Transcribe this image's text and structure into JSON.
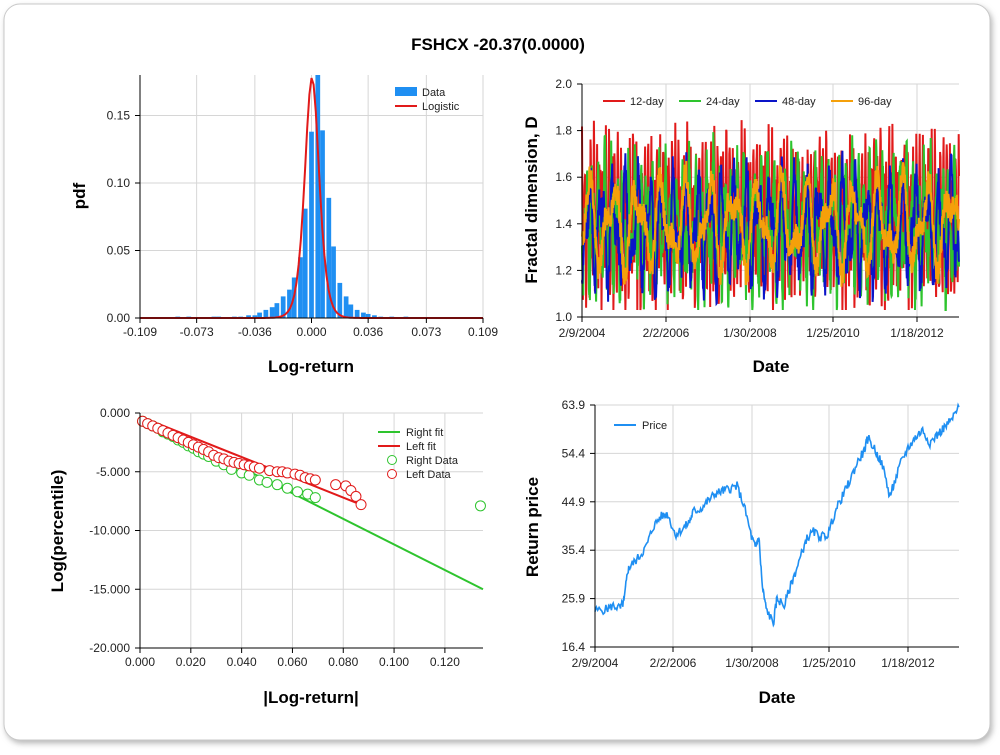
{
  "title": "FSHCX -20.37(0.0000)",
  "colors": {
    "data_blue": "#1f8ff2",
    "red": "#e11a1a",
    "green": "#2ec42e",
    "blue": "#0a14c8",
    "orange": "#f5a00a"
  },
  "chart_data": [
    {
      "id": "histogram",
      "type": "bar",
      "xlabel": "Log-return",
      "ylabel": "pdf",
      "xlim": [
        -0.109,
        0.109
      ],
      "ylim": [
        0,
        0.18
      ],
      "xticks": [
        "-0.109",
        "-0.073",
        "-0.036",
        "0.000",
        "0.036",
        "0.073",
        "0.109"
      ],
      "yticks": [
        "0.00",
        "0.05",
        "0.10",
        "0.15"
      ],
      "legend": [
        "Data",
        "Logistic"
      ],
      "legend_position": "top-right",
      "bin_width": 0.00364,
      "bins": [
        [
          -0.085,
          0.001
        ],
        [
          -0.078,
          0.001
        ],
        [
          -0.062,
          0.001
        ],
        [
          -0.059,
          0.001
        ],
        [
          -0.049,
          0.001
        ],
        [
          -0.045,
          0.001
        ],
        [
          -0.04,
          0.002
        ],
        [
          -0.036,
          0.002
        ],
        [
          -0.033,
          0.004
        ],
        [
          -0.029,
          0.006
        ],
        [
          -0.025,
          0.008
        ],
        [
          -0.022,
          0.011
        ],
        [
          -0.018,
          0.016
        ],
        [
          -0.014,
          0.021
        ],
        [
          -0.011,
          0.03
        ],
        [
          -0.007,
          0.045
        ],
        [
          -0.004,
          0.081
        ],
        [
          0.0,
          0.138
        ],
        [
          0.004,
          0.183
        ],
        [
          0.007,
          0.139
        ],
        [
          0.011,
          0.089
        ],
        [
          0.014,
          0.053
        ],
        [
          0.018,
          0.026
        ],
        [
          0.022,
          0.016
        ],
        [
          0.025,
          0.01
        ],
        [
          0.029,
          0.006
        ],
        [
          0.033,
          0.004
        ],
        [
          0.036,
          0.003
        ],
        [
          0.04,
          0.002
        ],
        [
          0.044,
          0.001
        ],
        [
          0.051,
          0.001
        ],
        [
          0.06,
          0.001
        ]
      ],
      "fit": {
        "name": "Logistic",
        "mu": 0.0003,
        "s": 0.00305
      }
    },
    {
      "id": "fractal",
      "type": "line",
      "xlabel": "Date",
      "ylabel": "Fractal dimension, D",
      "xticks": [
        "2/9/2004",
        "2/2/2006",
        "1/30/2008",
        "1/25/2010",
        "1/18/2012"
      ],
      "yticks": [
        "1.0",
        "1.2",
        "1.4",
        "1.6",
        "1.8",
        "2.0"
      ],
      "ylim": [
        1.0,
        2.0
      ],
      "legend_position": "top",
      "series": [
        {
          "name": "12-day",
          "color": "#e11a1a",
          "period": 12,
          "amp": 0.22,
          "base": 1.42,
          "seed": 3
        },
        {
          "name": "24-day",
          "color": "#2ec42e",
          "period": 24,
          "amp": 0.2,
          "base": 1.4,
          "seed": 7
        },
        {
          "name": "48-day",
          "color": "#0a14c8",
          "period": 48,
          "amp": 0.17,
          "base": 1.38,
          "seed": 11
        },
        {
          "name": "96-day",
          "color": "#f5a00a",
          "period": 96,
          "amp": 0.14,
          "base": 1.4,
          "seed": 19
        }
      ]
    },
    {
      "id": "tail",
      "type": "scatter",
      "xlabel": "|Log-return|",
      "ylabel": "Log(percentile)",
      "xlim": [
        0,
        0.135
      ],
      "ylim": [
        -20,
        0
      ],
      "xticks": [
        "0.000",
        "0.020",
        "0.040",
        "0.060",
        "0.080",
        "0.100",
        "0.120"
      ],
      "yticks": [
        "0.000",
        "-5.000",
        "-10.000",
        "-15.000",
        "-20.000"
      ],
      "legend": [
        "Right fit",
        "Left fit",
        "Right Data",
        "Left Data"
      ],
      "legend_position": "top-right",
      "right_fit": [
        [
          0,
          -0.3
        ],
        [
          0.135,
          -15.0
        ]
      ],
      "left_fit": [
        [
          0,
          -0.3
        ],
        [
          0.087,
          -7.8
        ]
      ],
      "right_data": [
        [
          0.001,
          -0.7
        ],
        [
          0.003,
          -0.9
        ],
        [
          0.005,
          -1.1
        ],
        [
          0.007,
          -1.3
        ],
        [
          0.009,
          -1.6
        ],
        [
          0.011,
          -1.8
        ],
        [
          0.013,
          -2.0
        ],
        [
          0.015,
          -2.3
        ],
        [
          0.017,
          -2.5
        ],
        [
          0.019,
          -2.8
        ],
        [
          0.021,
          -3.0
        ],
        [
          0.023,
          -3.3
        ],
        [
          0.025,
          -3.5
        ],
        [
          0.027,
          -3.7
        ],
        [
          0.03,
          -4.1
        ],
        [
          0.033,
          -4.4
        ],
        [
          0.036,
          -4.8
        ],
        [
          0.04,
          -5.1
        ],
        [
          0.043,
          -5.3
        ],
        [
          0.047,
          -5.7
        ],
        [
          0.05,
          -5.9
        ],
        [
          0.054,
          -6.1
        ],
        [
          0.058,
          -6.4
        ],
        [
          0.062,
          -6.7
        ],
        [
          0.066,
          -6.9
        ],
        [
          0.069,
          -7.2
        ],
        [
          0.134,
          -7.9
        ]
      ],
      "left_data": [
        [
          0.001,
          -0.7
        ],
        [
          0.003,
          -0.9
        ],
        [
          0.005,
          -1.1
        ],
        [
          0.007,
          -1.3
        ],
        [
          0.009,
          -1.5
        ],
        [
          0.011,
          -1.7
        ],
        [
          0.013,
          -1.9
        ],
        [
          0.015,
          -2.1
        ],
        [
          0.017,
          -2.3
        ],
        [
          0.019,
          -2.5
        ],
        [
          0.021,
          -2.7
        ],
        [
          0.023,
          -2.9
        ],
        [
          0.025,
          -3.1
        ],
        [
          0.027,
          -3.3
        ],
        [
          0.029,
          -3.6
        ],
        [
          0.031,
          -3.8
        ],
        [
          0.033,
          -3.9
        ],
        [
          0.035,
          -4.1
        ],
        [
          0.037,
          -4.2
        ],
        [
          0.039,
          -4.3
        ],
        [
          0.041,
          -4.4
        ],
        [
          0.043,
          -4.5
        ],
        [
          0.045,
          -4.6
        ],
        [
          0.047,
          -4.7
        ],
        [
          0.051,
          -4.9
        ],
        [
          0.054,
          -5.0
        ],
        [
          0.056,
          -5.0
        ],
        [
          0.058,
          -5.1
        ],
        [
          0.061,
          -5.2
        ],
        [
          0.063,
          -5.3
        ],
        [
          0.065,
          -5.5
        ],
        [
          0.067,
          -5.6
        ],
        [
          0.069,
          -5.7
        ],
        [
          0.077,
          -6.1
        ],
        [
          0.081,
          -6.2
        ],
        [
          0.083,
          -6.6
        ],
        [
          0.085,
          -7.1
        ],
        [
          0.087,
          -7.8
        ]
      ]
    },
    {
      "id": "price",
      "type": "line",
      "xlabel": "Date",
      "ylabel": "Return price",
      "xticks": [
        "2/9/2004",
        "2/2/2006",
        "1/30/2008",
        "1/25/2010",
        "1/18/2012"
      ],
      "yticks": [
        "63.9",
        "54.4",
        "44.9",
        "35.4",
        "25.9",
        "16.4"
      ],
      "ylim": [
        16.4,
        63.9
      ],
      "legend": [
        "Price"
      ],
      "legend_position": "top-left",
      "series": [
        {
          "name": "Price",
          "color": "#1f8ff2",
          "x": [
            0,
            0.03,
            0.05,
            0.07,
            0.08,
            0.09,
            0.1,
            0.12,
            0.14,
            0.16,
            0.18,
            0.2,
            0.22,
            0.24,
            0.26,
            0.27,
            0.29,
            0.31,
            0.33,
            0.35,
            0.37,
            0.39,
            0.41,
            0.43,
            0.44,
            0.45,
            0.46,
            0.47,
            0.49,
            0.5,
            0.52,
            0.54,
            0.56,
            0.58,
            0.6,
            0.62,
            0.64,
            0.66,
            0.68,
            0.7,
            0.72,
            0.74,
            0.75,
            0.77,
            0.79,
            0.81,
            0.82,
            0.84,
            0.86,
            0.88,
            0.9,
            0.92,
            0.94,
            0.96,
            0.98,
            1.0
          ],
          "values": [
            23.5,
            23.8,
            24.5,
            24.0,
            25.5,
            31.5,
            32.5,
            34.0,
            36.0,
            40.0,
            42.0,
            42.5,
            38.5,
            39.5,
            41.0,
            43.0,
            43.5,
            45.0,
            46.5,
            47.0,
            47.5,
            48.0,
            44.0,
            38.0,
            36.0,
            38.0,
            28.0,
            24.0,
            21.0,
            26.0,
            24.5,
            29.0,
            33.0,
            37.5,
            39.0,
            38.0,
            38.5,
            43.0,
            46.0,
            49.0,
            52.5,
            55.0,
            57.5,
            55.0,
            52.0,
            46.0,
            48.0,
            52.5,
            55.5,
            57.5,
            59.0,
            56.5,
            58.0,
            59.5,
            61.0,
            63.5
          ]
        }
      ]
    }
  ]
}
